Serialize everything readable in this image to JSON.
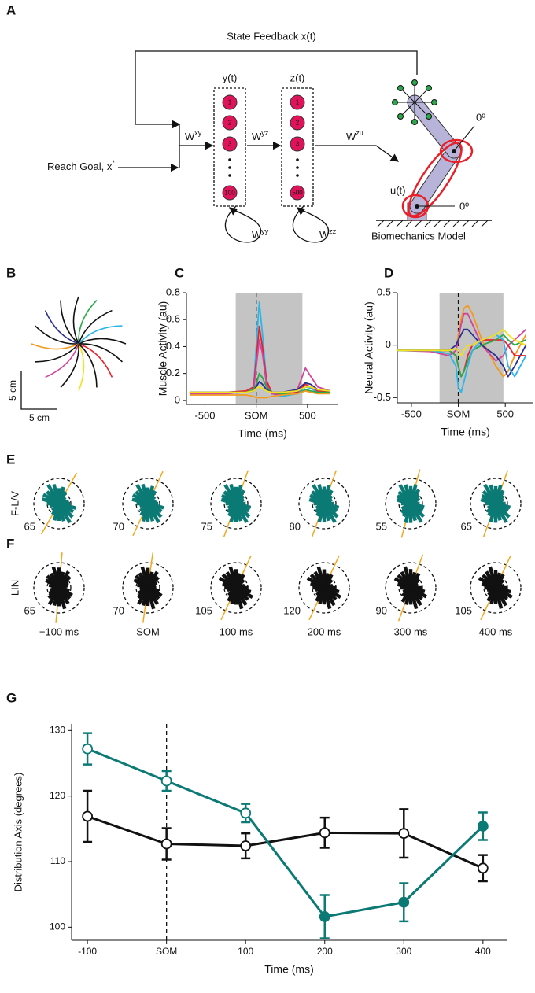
{
  "panel_labels": [
    "A",
    "B",
    "C",
    "D",
    "E",
    "F",
    "G"
  ],
  "diagram": {
    "feedback": "State Feedback x(t)",
    "y_label": "y(t)",
    "z_label": "z(t)",
    "y_nodes": [
      "1",
      "2",
      "3",
      "100"
    ],
    "z_nodes": [
      "1",
      "2",
      "3",
      "500"
    ],
    "reach_goal": {
      "base": "Reach Goal, x",
      "sup": "*"
    },
    "w_xy": {
      "base": "W",
      "sup": "xy"
    },
    "w_yz": {
      "base": "W",
      "sup": "yz"
    },
    "w_zu": {
      "base": "W",
      "sup": "zu"
    },
    "w_yy": {
      "base": "W",
      "sup": "yy"
    },
    "w_zz": {
      "base": "W",
      "sup": "zz"
    },
    "u_label": "u(t)",
    "angle_elbow": "0º",
    "angle_shoulder": "0º",
    "model": "Biomechanics Model"
  },
  "scale_bar": {
    "vertical": "5 cm",
    "horizontal": "5 cm"
  },
  "rose": {
    "rows": [
      {
        "label": "F-L/V",
        "color": "#0b7a75",
        "values": [
          65,
          70,
          75,
          80,
          55,
          65
        ]
      },
      {
        "label": "LIN",
        "color": "#111111",
        "values": [
          65,
          70,
          105,
          120,
          90,
          105
        ]
      }
    ],
    "times": [
      "−100 ms",
      "SOM",
      "100 ms",
      "200 ms",
      "300 ms",
      "400 ms"
    ]
  },
  "chart_data": [
    {
      "type": "line",
      "ylabel": "Muscle Activity (au)",
      "xlabel": "Time (ms)",
      "xlim": [
        -680,
        800
      ],
      "ylim": [
        -0.03,
        0.8
      ],
      "xticks": [
        -500,
        {
          "value": 0,
          "label": "SOM"
        },
        500
      ],
      "yticks": [
        0,
        0.2,
        0.4,
        0.6,
        0.8
      ],
      "shaded_region": [
        -200,
        450
      ],
      "event_line": 0,
      "x": [
        -650,
        -300,
        -100,
        -25,
        0,
        30,
        60,
        100,
        150,
        250,
        400,
        480,
        530,
        600,
        720
      ],
      "series": [
        {
          "color": "#2bb5e8",
          "values": [
            0.05,
            0.05,
            0.06,
            0.1,
            0.4,
            0.73,
            0.5,
            0.15,
            0.05,
            0.03,
            0.05,
            0.1,
            0.09,
            0.06,
            0.06
          ]
        },
        {
          "color": "#e8202a",
          "values": [
            0.06,
            0.06,
            0.07,
            0.1,
            0.3,
            0.55,
            0.4,
            0.15,
            0.06,
            0.04,
            0.06,
            0.12,
            0.1,
            0.07,
            0.06
          ]
        },
        {
          "color": "#d2449b",
          "values": [
            0.05,
            0.05,
            0.06,
            0.08,
            0.25,
            0.45,
            0.35,
            0.12,
            0.05,
            0.04,
            0.08,
            0.24,
            0.18,
            0.1,
            0.07
          ]
        },
        {
          "color": "#2aa84a",
          "values": [
            0.06,
            0.06,
            0.06,
            0.08,
            0.12,
            0.2,
            0.17,
            0.1,
            0.06,
            0.05,
            0.05,
            0.08,
            0.07,
            0.06,
            0.06
          ]
        },
        {
          "color": "#2a2f8f",
          "values": [
            0.06,
            0.06,
            0.06,
            0.07,
            0.1,
            0.14,
            0.12,
            0.08,
            0.06,
            0.06,
            0.08,
            0.13,
            0.12,
            0.08,
            0.07
          ]
        },
        {
          "color": "#f2e21b",
          "values": [
            0.06,
            0.06,
            0.06,
            0.07,
            0.09,
            0.1,
            0.09,
            0.07,
            0.06,
            0.06,
            0.07,
            0.1,
            0.1,
            0.08,
            0.07
          ]
        },
        {
          "color": "#f29a1e",
          "values": [
            0.04,
            0.04,
            0.04,
            0.03,
            0.02,
            0.02,
            0.02,
            0.02,
            0.03,
            0.04,
            0.05,
            0.07,
            0.06,
            0.05,
            0.05
          ]
        }
      ]
    },
    {
      "type": "line",
      "ylabel": "Neural Activity (au)",
      "xlabel": "Time (ms)",
      "xlim": [
        -650,
        800
      ],
      "ylim": [
        -0.55,
        0.5
      ],
      "xticks": [
        -500,
        {
          "value": 0,
          "label": "SOM"
        },
        500
      ],
      "yticks": [
        -0.5,
        0,
        0.5
      ],
      "shaded_region": [
        -200,
        480
      ],
      "event_line": 0,
      "x": [
        -650,
        -300,
        -100,
        -25,
        0,
        30,
        60,
        100,
        150,
        250,
        400,
        480,
        530,
        600,
        720
      ],
      "series": [
        {
          "color": "#f29a1e",
          "values": [
            -0.05,
            -0.05,
            -0.1,
            -0.05,
            0.1,
            0.25,
            0.35,
            0.38,
            0.3,
            0.05,
            -0.2,
            -0.3,
            -0.25,
            -0.1,
            0.1
          ]
        },
        {
          "color": "#d2449b",
          "values": [
            -0.05,
            -0.06,
            -0.1,
            -0.05,
            0.05,
            0.2,
            0.3,
            0.3,
            0.2,
            0.0,
            -0.15,
            -0.1,
            0.0,
            0.05,
            0.15
          ]
        },
        {
          "color": "#2a2f8f",
          "values": [
            -0.05,
            -0.05,
            -0.05,
            0.0,
            0.05,
            0.1,
            0.15,
            0.15,
            0.1,
            0.0,
            -0.1,
            -0.2,
            -0.3,
            -0.2,
            0.0
          ]
        },
        {
          "color": "#e8202a",
          "values": [
            -0.05,
            -0.05,
            -0.05,
            -0.1,
            -0.2,
            -0.3,
            -0.25,
            -0.1,
            0.0,
            0.05,
            0.05,
            0.05,
            0.0,
            -0.1,
            -0.1
          ]
        },
        {
          "color": "#2aa84a",
          "values": [
            -0.05,
            -0.05,
            -0.05,
            -0.1,
            -0.2,
            -0.3,
            -0.25,
            -0.15,
            -0.05,
            0.0,
            0.05,
            0.1,
            0.05,
            0.0,
            0.05
          ]
        },
        {
          "color": "#2bb5e8",
          "values": [
            -0.05,
            -0.05,
            -0.08,
            -0.2,
            -0.4,
            -0.45,
            -0.35,
            -0.2,
            -0.05,
            0.05,
            0.1,
            0.05,
            -0.2,
            -0.3,
            -0.1
          ]
        },
        {
          "color": "#f2e21b",
          "values": [
            -0.05,
            -0.05,
            -0.05,
            -0.03,
            -0.05,
            -0.1,
            -0.05,
            0.0,
            0.0,
            0.05,
            0.1,
            0.15,
            0.1,
            0.05,
            0.0
          ]
        }
      ]
    },
    {
      "type": "errorline",
      "ylabel": "Distribution Axis (degrees)",
      "xlabel": "Time (ms)",
      "xlim": [
        -120,
        430
      ],
      "ylim": [
        98,
        131
      ],
      "xticks": [
        -100,
        {
          "value": 0,
          "label": "SOM"
        },
        100,
        200,
        300,
        400
      ],
      "yticks": [
        100,
        110,
        120,
        130
      ],
      "event_line": 0,
      "x": [
        -100,
        0,
        100,
        200,
        300,
        400
      ],
      "series": [
        {
          "color": "#111111",
          "values": [
            116.9,
            112.7,
            112.4,
            114.4,
            114.3,
            109.0
          ],
          "errors": [
            3.9,
            2.4,
            1.9,
            2.3,
            3.7,
            2.0
          ],
          "filled": [
            false,
            false,
            false,
            false,
            false,
            false
          ]
        },
        {
          "color": "#0b7a75",
          "values": [
            127.2,
            122.3,
            117.4,
            101.6,
            103.8,
            115.4
          ],
          "errors": [
            2.4,
            1.5,
            1.4,
            3.3,
            2.9,
            2.1
          ],
          "filled": [
            false,
            false,
            false,
            true,
            true,
            true
          ]
        }
      ]
    }
  ]
}
